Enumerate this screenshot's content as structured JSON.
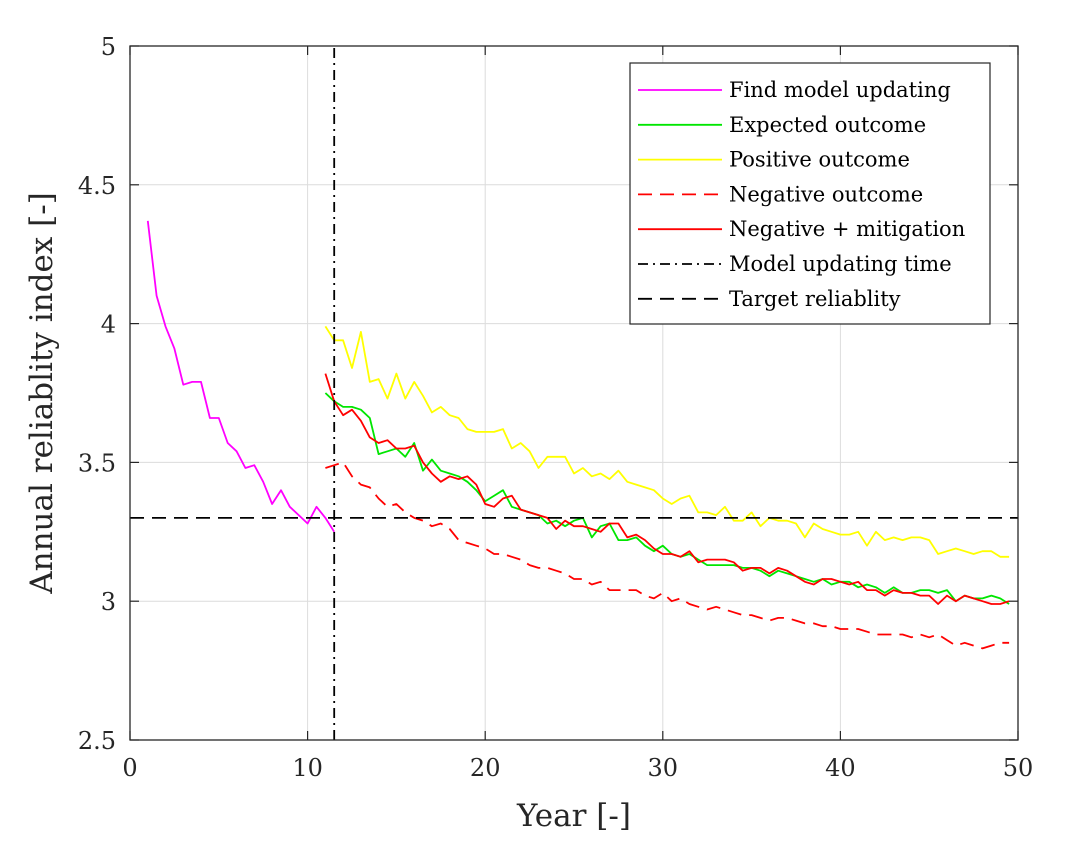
{
  "chart_data": {
    "type": "line",
    "title": "",
    "xlabel": "Year [-]",
    "ylabel": "Annual reliablity index [-]",
    "xlim": [
      0,
      50
    ],
    "ylim": [
      2.5,
      5
    ],
    "xticks": [
      0,
      10,
      20,
      30,
      40,
      50
    ],
    "yticks": [
      2.5,
      3,
      3.5,
      4,
      4.5,
      5
    ],
    "xtick_labels": [
      "0",
      "10",
      "20",
      "30",
      "40",
      "50"
    ],
    "ytick_labels": [
      "2.5",
      "3",
      "3.5",
      "4",
      "4.5",
      "5"
    ],
    "grid": true,
    "legend_position": "top-right",
    "series": [
      {
        "name": "Find model updating",
        "color": "#ff00ff",
        "dash": "solid",
        "x": [
          1.0,
          1.5,
          2.0,
          2.5,
          3.0,
          3.5,
          4.0,
          4.5,
          5.0,
          5.5,
          6.0,
          6.5,
          7.0,
          7.5,
          8.0,
          8.5,
          9.0,
          9.5,
          10.0,
          10.5,
          11.0,
          11.5
        ],
        "values": [
          4.37,
          4.1,
          3.99,
          3.91,
          3.78,
          3.79,
          3.79,
          3.66,
          3.66,
          3.57,
          3.54,
          3.48,
          3.49,
          3.43,
          3.35,
          3.4,
          3.34,
          3.31,
          3.28,
          3.34,
          3.3,
          3.25
        ]
      },
      {
        "name": "Expected outcome",
        "color": "#00e600",
        "dash": "solid",
        "x": [
          11.0,
          11.5,
          12.0,
          12.5,
          13.0,
          13.5,
          14.0,
          14.5,
          15.0,
          15.5,
          16.0,
          16.5,
          17.0,
          17.5,
          18.0,
          18.5,
          19.0,
          19.5,
          20.0,
          20.5,
          21.0,
          21.5,
          22.0,
          22.5,
          23.0,
          23.5,
          24.0,
          24.5,
          25.0,
          25.5,
          26.0,
          26.5,
          27.0,
          27.5,
          28.0,
          28.5,
          29.0,
          29.5,
          30.0,
          30.5,
          31.0,
          31.5,
          32.0,
          32.5,
          33.0,
          33.5,
          34.0,
          34.5,
          35.0,
          35.5,
          36.0,
          36.5,
          37.0,
          37.5,
          38.0,
          38.5,
          39.0,
          39.5,
          40.0,
          40.5,
          41.0,
          41.5,
          42.0,
          42.5,
          43.0,
          43.5,
          44.0,
          44.5,
          45.0,
          45.5,
          46.0,
          46.5,
          47.0,
          47.5,
          48.0,
          48.5,
          49.0,
          49.5
        ],
        "values": [
          3.75,
          3.72,
          3.7,
          3.7,
          3.69,
          3.66,
          3.53,
          3.54,
          3.55,
          3.52,
          3.57,
          3.47,
          3.51,
          3.47,
          3.46,
          3.45,
          3.43,
          3.4,
          3.36,
          3.38,
          3.4,
          3.34,
          3.33,
          3.32,
          3.31,
          3.28,
          3.29,
          3.27,
          3.29,
          3.3,
          3.23,
          3.27,
          3.28,
          3.22,
          3.22,
          3.23,
          3.2,
          3.18,
          3.2,
          3.17,
          3.16,
          3.17,
          3.15,
          3.13,
          3.13,
          3.13,
          3.13,
          3.12,
          3.12,
          3.11,
          3.09,
          3.11,
          3.1,
          3.09,
          3.08,
          3.07,
          3.08,
          3.06,
          3.07,
          3.07,
          3.05,
          3.06,
          3.05,
          3.03,
          3.05,
          3.03,
          3.03,
          3.04,
          3.04,
          3.03,
          3.04,
          3.0,
          3.02,
          3.01,
          3.01,
          3.02,
          3.01,
          2.99
        ]
      },
      {
        "name": "Positive outcome",
        "color": "#ffff00",
        "dash": "solid",
        "x": [
          11.0,
          11.5,
          12.0,
          12.5,
          13.0,
          13.5,
          14.0,
          14.5,
          15.0,
          15.5,
          16.0,
          16.5,
          17.0,
          17.5,
          18.0,
          18.5,
          19.0,
          19.5,
          20.0,
          20.5,
          21.0,
          21.5,
          22.0,
          22.5,
          23.0,
          23.5,
          24.0,
          24.5,
          25.0,
          25.5,
          26.0,
          26.5,
          27.0,
          27.5,
          28.0,
          28.5,
          29.0,
          29.5,
          30.0,
          30.5,
          31.0,
          31.5,
          32.0,
          32.5,
          33.0,
          33.5,
          34.0,
          34.5,
          35.0,
          35.5,
          36.0,
          36.5,
          37.0,
          37.5,
          38.0,
          38.5,
          39.0,
          39.5,
          40.0,
          40.5,
          41.0,
          41.5,
          42.0,
          42.5,
          43.0,
          43.5,
          44.0,
          44.5,
          45.0,
          45.5,
          46.0,
          46.5,
          47.0,
          47.5,
          48.0,
          48.5,
          49.0,
          49.5
        ],
        "values": [
          3.99,
          3.94,
          3.94,
          3.84,
          3.97,
          3.79,
          3.8,
          3.73,
          3.82,
          3.73,
          3.79,
          3.74,
          3.68,
          3.7,
          3.67,
          3.66,
          3.62,
          3.61,
          3.61,
          3.61,
          3.62,
          3.55,
          3.57,
          3.54,
          3.48,
          3.52,
          3.52,
          3.52,
          3.46,
          3.48,
          3.45,
          3.46,
          3.44,
          3.47,
          3.43,
          3.42,
          3.41,
          3.4,
          3.37,
          3.35,
          3.37,
          3.38,
          3.32,
          3.32,
          3.31,
          3.34,
          3.29,
          3.29,
          3.32,
          3.27,
          3.3,
          3.29,
          3.29,
          3.28,
          3.23,
          3.28,
          3.26,
          3.25,
          3.24,
          3.24,
          3.25,
          3.2,
          3.25,
          3.22,
          3.23,
          3.22,
          3.23,
          3.23,
          3.22,
          3.17,
          3.18,
          3.19,
          3.18,
          3.17,
          3.18,
          3.18,
          3.16,
          3.16
        ]
      },
      {
        "name": "Negative outcome",
        "color": "#ff0000",
        "dash": "dashed",
        "x": [
          11.0,
          11.5,
          12.0,
          12.5,
          13.0,
          13.5,
          14.0,
          14.5,
          15.0,
          15.5,
          16.0,
          16.5,
          17.0,
          17.5,
          18.0,
          18.5,
          19.0,
          19.5,
          20.0,
          20.5,
          21.0,
          21.5,
          22.0,
          22.5,
          23.0,
          23.5,
          24.0,
          24.5,
          25.0,
          25.5,
          26.0,
          26.5,
          27.0,
          27.5,
          28.0,
          28.5,
          29.0,
          29.5,
          30.0,
          30.5,
          31.0,
          31.5,
          32.0,
          32.5,
          33.0,
          33.5,
          34.0,
          34.5,
          35.0,
          35.5,
          36.0,
          36.5,
          37.0,
          37.5,
          38.0,
          38.5,
          39.0,
          39.5,
          40.0,
          40.5,
          41.0,
          41.5,
          42.0,
          42.5,
          43.0,
          43.5,
          44.0,
          44.5,
          45.0,
          45.5,
          46.0,
          46.5,
          47.0,
          47.5,
          48.0,
          48.5,
          49.0,
          49.5
        ],
        "values": [
          3.48,
          3.49,
          3.5,
          3.45,
          3.42,
          3.41,
          3.37,
          3.34,
          3.35,
          3.32,
          3.3,
          3.29,
          3.27,
          3.28,
          3.26,
          3.22,
          3.21,
          3.2,
          3.19,
          3.17,
          3.17,
          3.16,
          3.15,
          3.13,
          3.12,
          3.12,
          3.11,
          3.1,
          3.08,
          3.08,
          3.06,
          3.07,
          3.04,
          3.04,
          3.04,
          3.04,
          3.02,
          3.01,
          3.03,
          3.0,
          3.01,
          2.99,
          2.98,
          2.97,
          2.98,
          2.97,
          2.96,
          2.95,
          2.95,
          2.94,
          2.93,
          2.94,
          2.94,
          2.93,
          2.92,
          2.92,
          2.91,
          2.91,
          2.9,
          2.9,
          2.9,
          2.89,
          2.88,
          2.88,
          2.88,
          2.88,
          2.87,
          2.88,
          2.87,
          2.88,
          2.86,
          2.84,
          2.85,
          2.84,
          2.83,
          2.84,
          2.85,
          2.85
        ]
      },
      {
        "name": "Negative + mitigation",
        "color": "#ff0000",
        "dash": "solid",
        "x": [
          11.0,
          11.5,
          12.0,
          12.5,
          13.0,
          13.5,
          14.0,
          14.5,
          15.0,
          15.5,
          16.0,
          16.5,
          17.0,
          17.5,
          18.0,
          18.5,
          19.0,
          19.5,
          20.0,
          20.5,
          21.0,
          21.5,
          22.0,
          22.5,
          23.0,
          23.5,
          24.0,
          24.5,
          25.0,
          25.5,
          26.0,
          26.5,
          27.0,
          27.5,
          28.0,
          28.5,
          29.0,
          29.5,
          30.0,
          30.5,
          31.0,
          31.5,
          32.0,
          32.5,
          33.0,
          33.5,
          34.0,
          34.5,
          35.0,
          35.5,
          36.0,
          36.5,
          37.0,
          37.5,
          38.0,
          38.5,
          39.0,
          39.5,
          40.0,
          40.5,
          41.0,
          41.5,
          42.0,
          42.5,
          43.0,
          43.5,
          44.0,
          44.5,
          45.0,
          45.5,
          46.0,
          46.5,
          47.0,
          47.5,
          48.0,
          48.5,
          49.0,
          49.5
        ],
        "values": [
          3.82,
          3.72,
          3.67,
          3.69,
          3.65,
          3.59,
          3.57,
          3.58,
          3.55,
          3.55,
          3.56,
          3.5,
          3.46,
          3.43,
          3.45,
          3.44,
          3.45,
          3.42,
          3.35,
          3.34,
          3.37,
          3.38,
          3.33,
          3.32,
          3.31,
          3.3,
          3.26,
          3.29,
          3.27,
          3.27,
          3.26,
          3.25,
          3.28,
          3.28,
          3.23,
          3.24,
          3.22,
          3.19,
          3.17,
          3.17,
          3.16,
          3.18,
          3.14,
          3.15,
          3.15,
          3.15,
          3.14,
          3.11,
          3.12,
          3.12,
          3.1,
          3.12,
          3.11,
          3.09,
          3.07,
          3.06,
          3.08,
          3.08,
          3.07,
          3.06,
          3.07,
          3.04,
          3.04,
          3.02,
          3.04,
          3.03,
          3.03,
          3.02,
          3.02,
          2.99,
          3.02,
          3.0,
          3.02,
          3.01,
          3.0,
          2.99,
          2.99,
          3.0
        ]
      },
      {
        "name": "Model updating time",
        "color": "#000000",
        "dash": "dashdot",
        "orientation": "vertical",
        "x": [
          11.5,
          11.5
        ],
        "values": [
          2.5,
          5
        ]
      },
      {
        "name": "Target reliablity",
        "color": "#000000",
        "dash": "dashed",
        "orientation": "horizontal",
        "x": [
          0,
          50
        ],
        "values": [
          3.3,
          3.3
        ]
      }
    ]
  }
}
